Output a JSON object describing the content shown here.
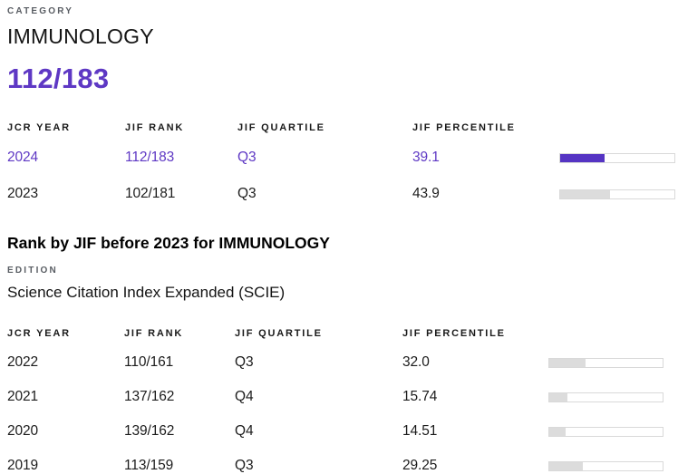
{
  "colors": {
    "accent_text_purple": "#5E38C4",
    "bar_fill_purple": "#5534C3",
    "bar_fill_gray": "#DCDCDC",
    "bar_track_border": "#D9D9D9",
    "eyebrow_gray": "#595D63",
    "text_dark": "#1C1C1C"
  },
  "category_section": {
    "eyebrow": "CATEGORY",
    "name": "IMMUNOLOGY",
    "current_rank": "112/183"
  },
  "current_table": {
    "columns": [
      "JCR YEAR",
      "JIF RANK",
      "JIF QUARTILE",
      "JIF PERCENTILE"
    ],
    "rows": [
      {
        "year": "2024",
        "rank": "112/183",
        "quartile": "Q3",
        "percentile": "39.1",
        "highlight": true
      },
      {
        "year": "2023",
        "rank": "102/181",
        "quartile": "Q3",
        "percentile": "43.9",
        "highlight": false
      }
    ]
  },
  "history_section": {
    "title": "Rank by JIF before 2023 for IMMUNOLOGY",
    "edition_label": "EDITION",
    "edition_value": "Science Citation Index Expanded (SCIE)"
  },
  "history_table": {
    "columns": [
      "JCR YEAR",
      "JIF RANK",
      "JIF QUARTILE",
      "JIF PERCENTILE"
    ],
    "rows": [
      {
        "year": "2022",
        "rank": "110/161",
        "quartile": "Q3",
        "percentile": "32.0",
        "highlight": false
      },
      {
        "year": "2021",
        "rank": "137/162",
        "quartile": "Q4",
        "percentile": "15.74",
        "highlight": false
      },
      {
        "year": "2020",
        "rank": "139/162",
        "quartile": "Q4",
        "percentile": "14.51",
        "highlight": false
      },
      {
        "year": "2019",
        "rank": "113/159",
        "quartile": "Q3",
        "percentile": "29.25",
        "highlight": false
      }
    ]
  }
}
